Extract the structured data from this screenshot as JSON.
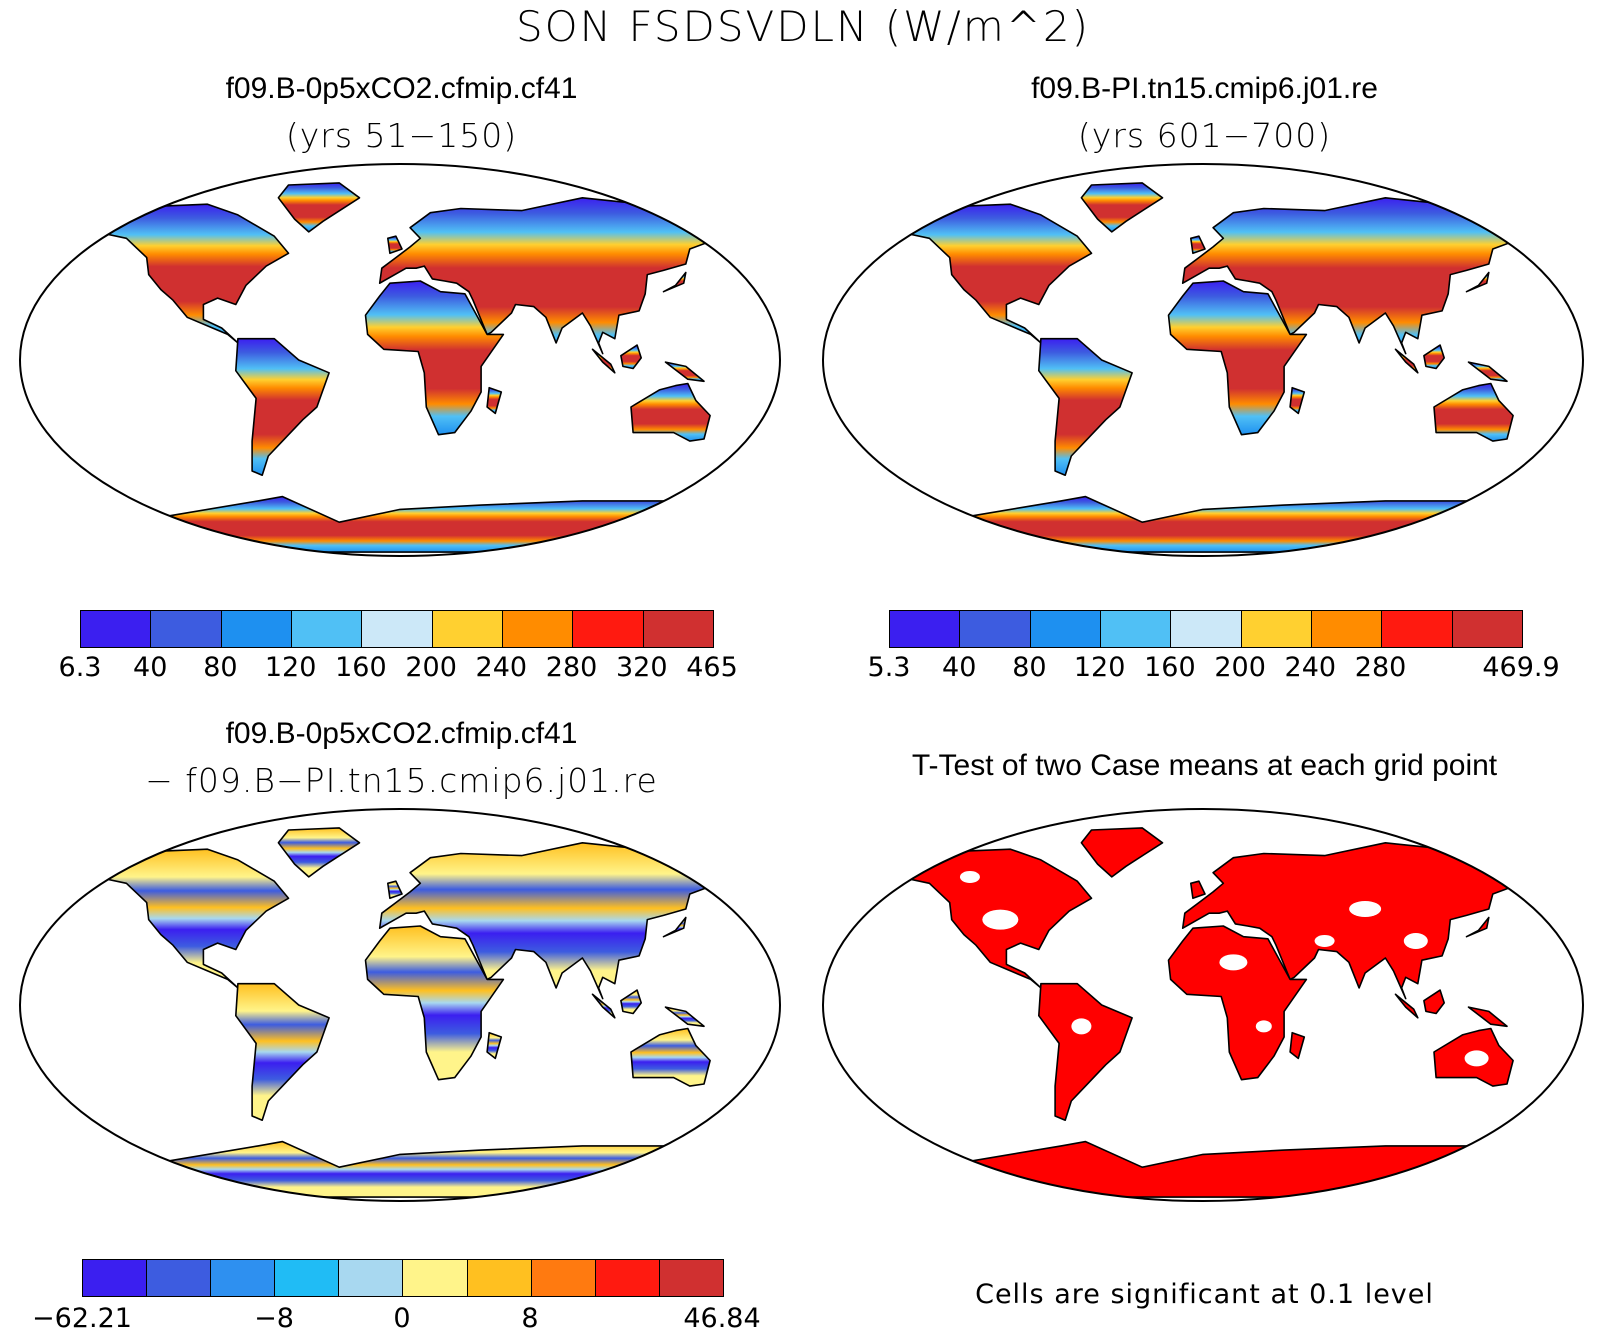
{
  "figure": {
    "title": "SON FSDSVDLN (W/m^2)"
  },
  "panels": {
    "case1": {
      "title": "f09.B-0p5xCO2.cfmip.cf41",
      "subtitle": "(yrs 51−150)",
      "colorbar": {
        "colors": [
          "#3b1ff0",
          "#3d5ce0",
          "#1e90f0",
          "#50c0f5",
          "#cce8f8",
          "#ffd030",
          "#ff8c00",
          "#ff1a10",
          "#d03030"
        ],
        "labels": [
          "6.3",
          "40",
          "80",
          "120",
          "160",
          "200",
          "240",
          "280",
          "320",
          "465"
        ]
      }
    },
    "case2": {
      "title": "f09.B-PI.tn15.cmip6.j01.re",
      "subtitle": "(yrs 601−700)",
      "colorbar": {
        "colors": [
          "#3b1ff0",
          "#3d5ce0",
          "#1e90f0",
          "#50c0f5",
          "#cce8f8",
          "#ffd030",
          "#ff8c00",
          "#ff1a10",
          "#d03030"
        ],
        "labels": [
          "5.3",
          "40",
          "80",
          "120",
          "160",
          "200",
          "240",
          "280",
          "",
          "469.9"
        ]
      }
    },
    "difference": {
      "title": "f09.B-0p5xCO2.cfmip.cf41",
      "subtitle": "− f09.B−PI.tn15.cmip6.j01.re",
      "colorbar": {
        "colors": [
          "#3b1ff0",
          "#3d5ce0",
          "#2e90f0",
          "#20bcf5",
          "#a8d8f0",
          "#fff48a",
          "#ffc020",
          "#ff7a10",
          "#ff1a10",
          "#d03030"
        ],
        "labels": [
          "−62.21",
          "",
          "",
          "−8",
          "",
          "0",
          "",
          "8",
          "",
          "",
          "46.84"
        ]
      }
    },
    "ttest": {
      "title": "T-Test of two Case means at each grid point",
      "note": "Cells are significant at 0.1 level",
      "significant_color": "#ff0000"
    }
  }
}
